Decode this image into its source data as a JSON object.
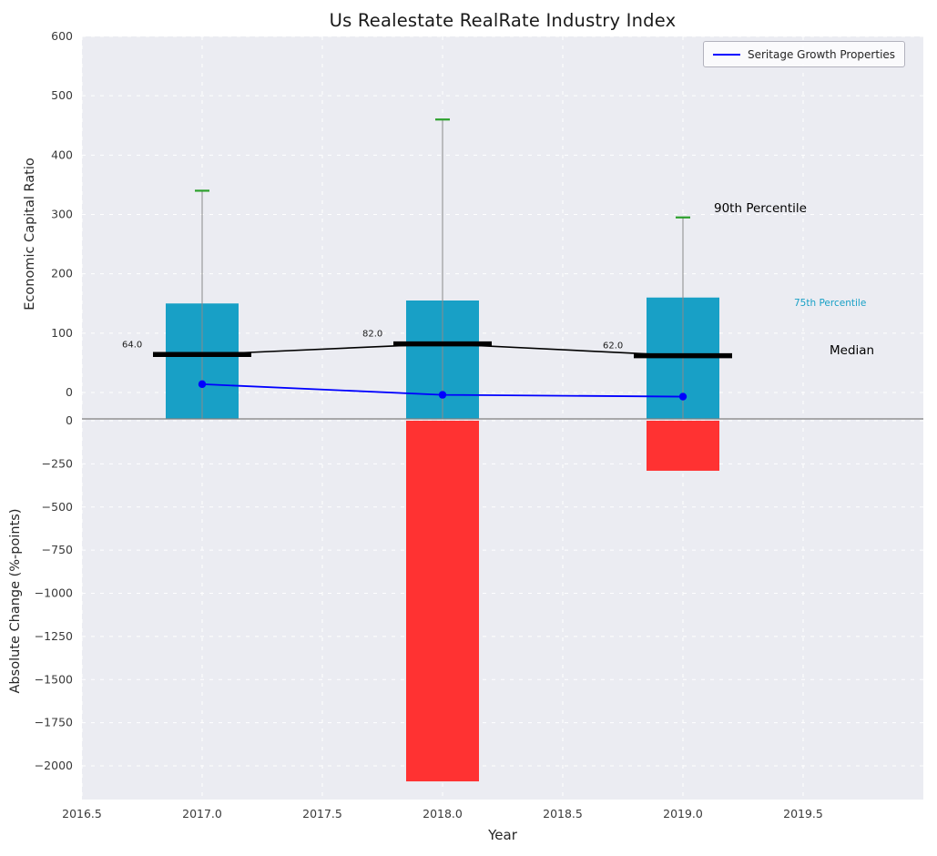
{
  "title": "Us Realestate RealRate Industry Index",
  "legend": {
    "label": "Seritage Growth Properties"
  },
  "annotations": {
    "p90": "90th Percentile",
    "p75": "75th Percentile",
    "median": "Median"
  },
  "colors": {
    "bar_75th": "#18a0c6",
    "bar_change": "#ff3232",
    "whisker_cap": "#2ca02c",
    "whisker_line": "#8a8a8a",
    "series_line": "#0000ff",
    "median_line": "#000000",
    "plot_bg": "#ebecf2",
    "grid": "#ffffff",
    "divider": "#808080",
    "tick_text": "#3a3a3a"
  },
  "chart_data": {
    "type": "bar",
    "title": "Us Realestate RealRate Industry Index",
    "xlabel": "Year",
    "x": [
      2017,
      2018,
      2019
    ],
    "xlim": [
      2016.5,
      2020.0
    ],
    "xtick_values": [
      2016.5,
      2017.0,
      2017.5,
      2018.0,
      2018.5,
      2019.0,
      2019.5
    ],
    "xtick_labels": [
      "2016.5",
      "2017.0",
      "2017.5",
      "2018.0",
      "2018.5",
      "2019.0",
      "2019.5"
    ],
    "legend_position": "upper right",
    "grid": true,
    "top_panel": {
      "ylabel": "Economic Capital Ratio",
      "ylim": [
        -45,
        600
      ],
      "ytick_values": [
        0,
        100,
        200,
        300,
        400,
        500,
        600
      ],
      "ytick_labels": [
        "0",
        "100",
        "200",
        "300",
        "400",
        "500",
        "600"
      ],
      "percentile_75_bars": [
        150,
        155,
        160
      ],
      "percentile_90_whiskers": [
        340,
        460,
        295
      ],
      "medians": [
        64.0,
        82.0,
        62.0
      ],
      "median_labels": [
        "64.0",
        "82.0",
        "62.0"
      ],
      "series": [
        {
          "name": "Seritage Growth Properties",
          "values": [
            14,
            -4,
            -7
          ]
        }
      ]
    },
    "bottom_panel": {
      "ylabel": "Absolute Change (%-points)",
      "ylim": [
        -2190,
        10
      ],
      "ytick_values": [
        0,
        -250,
        -500,
        -750,
        -1000,
        -1250,
        -1500,
        -1750,
        -2000
      ],
      "ytick_labels": [
        "0",
        "−250",
        "−500",
        "−750",
        "−1000",
        "−1250",
        "−1500",
        "−1750",
        "−2000"
      ],
      "change_bars": [
        null,
        -2090,
        -290
      ]
    }
  }
}
